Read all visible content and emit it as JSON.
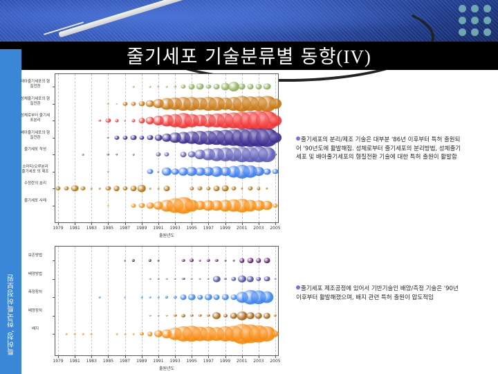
{
  "slide": {
    "title_korean": "줄기세포 기술분류별 동향",
    "title_roman": "(IV)",
    "source": "특허청, 한국특허정보원"
  },
  "notes": [
    {
      "text": "줄기세포의 분리/제조 기술은 대부분 '86년 이후부터 특허 출원되어 '90년도에 활발해짐. 성체로부터 줄기세포의 분리방법, 성체줄기세포 및 배아줄기세포의 형질전환 기술에 대한 특허 출원이 활발함"
    },
    {
      "text": "줄기세포 제조공정에 있어서 기반기술인 배양/측정 기술은 '90년 이후부터 활발해졌으며, 배지 관련 특허 출원이 압도적임"
    }
  ],
  "chart_data": [
    {
      "type": "bubble",
      "title": "",
      "xlabel": "출원년도",
      "ylabel": "",
      "x_ticks": [
        "1979",
        "1981",
        "1983",
        "1985",
        "1987",
        "1989",
        "1991",
        "1993",
        "1995",
        "1997",
        "1999",
        "2001",
        "2003",
        "2005"
      ],
      "xlim": [
        1979,
        2005
      ],
      "grid": true,
      "categories": [
        "태아줄기세포의 형질전환",
        "성체줄기세포의 형질전환",
        "성체로부터 줄기세포분리",
        "배아줄기세포의 형질전환",
        "줄기세포 작성",
        "소마티/오루분리 줄기세포 의 제조",
        "수정란의 분리",
        "줄기세포 사례"
      ],
      "series": [
        {
          "name": "태아줄기세포의 형질전환",
          "color": "#8fae5a",
          "x": [
            1988,
            1990,
            1991,
            1992,
            1993,
            1994,
            1995,
            1996,
            1997,
            1998,
            1999,
            2000,
            2001,
            2002,
            2003,
            2004
          ],
          "size": [
            1,
            1,
            2,
            1,
            2,
            4,
            5,
            6,
            4,
            5,
            7,
            9,
            6,
            5,
            5,
            6
          ]
        },
        {
          "name": "성체줄기세포의 형질전환",
          "color": "#c8740c",
          "x": [
            1985,
            1986,
            1987,
            1988,
            1989,
            1990,
            1991,
            1992,
            1993,
            1994,
            1995,
            1996,
            1997,
            1998,
            1999,
            2000,
            2001,
            2002,
            2003,
            2004,
            2005
          ],
          "size": [
            1,
            1,
            4,
            4,
            5,
            7,
            9,
            11,
            12,
            13,
            13,
            12,
            13,
            13,
            12,
            13,
            15,
            14,
            14,
            15,
            10
          ]
        },
        {
          "name": "성체로부터 줄기세포분리",
          "color": "#f23232",
          "x": [
            1984,
            1985,
            1986,
            1987,
            1988,
            1989,
            1990,
            1991,
            1992,
            1993,
            1994,
            1995,
            1996,
            1997,
            1998,
            1999,
            2000,
            2001,
            2002,
            2003,
            2004,
            2005
          ],
          "size": [
            2,
            4,
            3,
            1,
            3,
            5,
            7,
            9,
            11,
            12,
            14,
            12,
            11,
            12,
            13,
            14,
            15,
            16,
            17,
            18,
            18,
            10
          ]
        },
        {
          "name": "배아줄기세포의 형질전환",
          "color": "#3a2a90",
          "x": [
            1985,
            1986,
            1987,
            1988,
            1989,
            1990,
            1991,
            1992,
            1993,
            1994,
            1995,
            1996,
            1997,
            1998,
            1999,
            2000,
            2001,
            2002,
            2003,
            2004,
            2005
          ],
          "size": [
            1,
            4,
            4,
            5,
            4,
            5,
            6,
            8,
            10,
            11,
            12,
            13,
            13,
            14,
            15,
            16,
            17,
            18,
            18,
            18,
            10
          ]
        },
        {
          "name": "줄기세포 작성",
          "color": "#5a5ab8",
          "x": [
            1982,
            1985,
            1986,
            1988,
            1991,
            1992,
            1994,
            1995,
            1996,
            1997,
            1998,
            1999,
            2000,
            2001,
            2002,
            2003,
            2004,
            2005
          ],
          "size": [
            1,
            2,
            2,
            1,
            4,
            4,
            5,
            6,
            9,
            11,
            12,
            13,
            13,
            14,
            14,
            15,
            14,
            2
          ]
        },
        {
          "name": "소마티/오루분리 줄기세포 의 제조",
          "color": "#3a7aee",
          "x": [
            1985,
            1990,
            1991,
            1992,
            1993,
            1994,
            1995,
            1996,
            1997,
            1998,
            1999,
            2000,
            2001,
            2002,
            2003,
            2004,
            2005
          ],
          "size": [
            1,
            5,
            2,
            8,
            6,
            8,
            9,
            8,
            9,
            10,
            9,
            11,
            13,
            12,
            9,
            6,
            5
          ]
        },
        {
          "name": "수정란의 분리",
          "color": "#b8700a",
          "x": [
            1979,
            1980,
            1981,
            1982,
            1983,
            1984,
            1985,
            1986,
            1987,
            1988,
            1989,
            1990,
            1991,
            1992,
            1995,
            1996,
            1997,
            1998,
            1999,
            2000,
            2001,
            2002,
            2003,
            2004
          ],
          "size": [
            4,
            4,
            6,
            4,
            1,
            1,
            4,
            5,
            4,
            5,
            7,
            1,
            1,
            5,
            3,
            4,
            3,
            5,
            6,
            4,
            2,
            4,
            3,
            2
          ]
        },
        {
          "name": "줄기세포 사례",
          "color": "#f88a0a",
          "x": [
            1985,
            1988,
            1989,
            1990,
            1991,
            1992,
            1993,
            1994,
            1995,
            1996,
            1997,
            1998,
            1999,
            2000,
            2001,
            2002,
            2003,
            2004,
            2005
          ],
          "size": [
            1,
            4,
            5,
            6,
            8,
            11,
            14,
            16,
            11,
            9,
            10,
            10,
            11,
            12,
            13,
            11,
            10,
            9,
            4
          ]
        }
      ]
    },
    {
      "type": "bubble",
      "title": "",
      "xlabel": "출원년도",
      "ylabel": "",
      "x_ticks": [
        "1979",
        "1981",
        "1983",
        "1985",
        "1987",
        "1989",
        "1991",
        "1993",
        "1995",
        "1997",
        "1999",
        "2001",
        "2003",
        "2005"
      ],
      "xlim": [
        1979,
        2005
      ],
      "grid": true,
      "categories": [
        "보존방법",
        "배양방법",
        "측정장치",
        "배양장치",
        "배지"
      ],
      "series": [
        {
          "name": "보존방법",
          "color": "#5a1a6a",
          "x": [
            1987,
            1988,
            1990,
            1991,
            1994,
            1995,
            1996,
            1997,
            1998,
            1999,
            2000,
            2001,
            2002,
            2003,
            2004
          ],
          "size": [
            1,
            3,
            3,
            2,
            3,
            4,
            2,
            3,
            3,
            2,
            2,
            5,
            6,
            5,
            6
          ]
        },
        {
          "name": "배양방법",
          "color": "#4a4aa8",
          "x": [
            1990,
            1991,
            1992,
            1993,
            1994,
            1995,
            1996,
            1997,
            1998,
            1999,
            2000,
            2001,
            2002,
            2003,
            2004,
            2005
          ],
          "size": [
            1,
            1,
            1,
            2,
            3,
            2,
            2,
            2,
            7,
            3,
            5,
            8,
            7,
            5,
            6,
            2
          ]
        },
        {
          "name": "측정장치",
          "color": "#3a82f0",
          "x": [
            1984,
            1987,
            1989,
            1990,
            1991,
            1992,
            1993,
            1994,
            1995,
            1996,
            1997,
            1998,
            1999,
            2000,
            2001,
            2002,
            2003,
            2004
          ],
          "size": [
            1,
            1,
            1,
            1,
            1,
            3,
            3,
            6,
            7,
            5,
            7,
            6,
            7,
            6,
            12,
            16,
            15,
            13
          ]
        },
        {
          "name": "배양장치",
          "color": "#a8620a",
          "x": [
            1990,
            1991,
            1992,
            1993,
            1994,
            1995,
            1996,
            1997,
            1998,
            1999,
            2000,
            2001,
            2002,
            2003,
            2004,
            2005
          ],
          "size": [
            1,
            1,
            1,
            3,
            4,
            3,
            3,
            3,
            8,
            4,
            7,
            10,
            8,
            7,
            7,
            3
          ]
        },
        {
          "name": "배지",
          "color": "#f8880a",
          "x": [
            1980,
            1981,
            1982,
            1983,
            1986,
            1987,
            1988,
            1989,
            1990,
            1991,
            1992,
            1993,
            1994,
            1995,
            1996,
            1997,
            1998,
            1999,
            2000,
            2001,
            2002,
            2003,
            2004,
            2005
          ],
          "size": [
            2,
            1,
            1,
            2,
            2,
            2,
            2,
            4,
            5,
            8,
            10,
            14,
            17,
            18,
            16,
            16,
            15,
            17,
            18,
            22,
            21,
            19,
            17,
            7
          ]
        }
      ]
    }
  ]
}
